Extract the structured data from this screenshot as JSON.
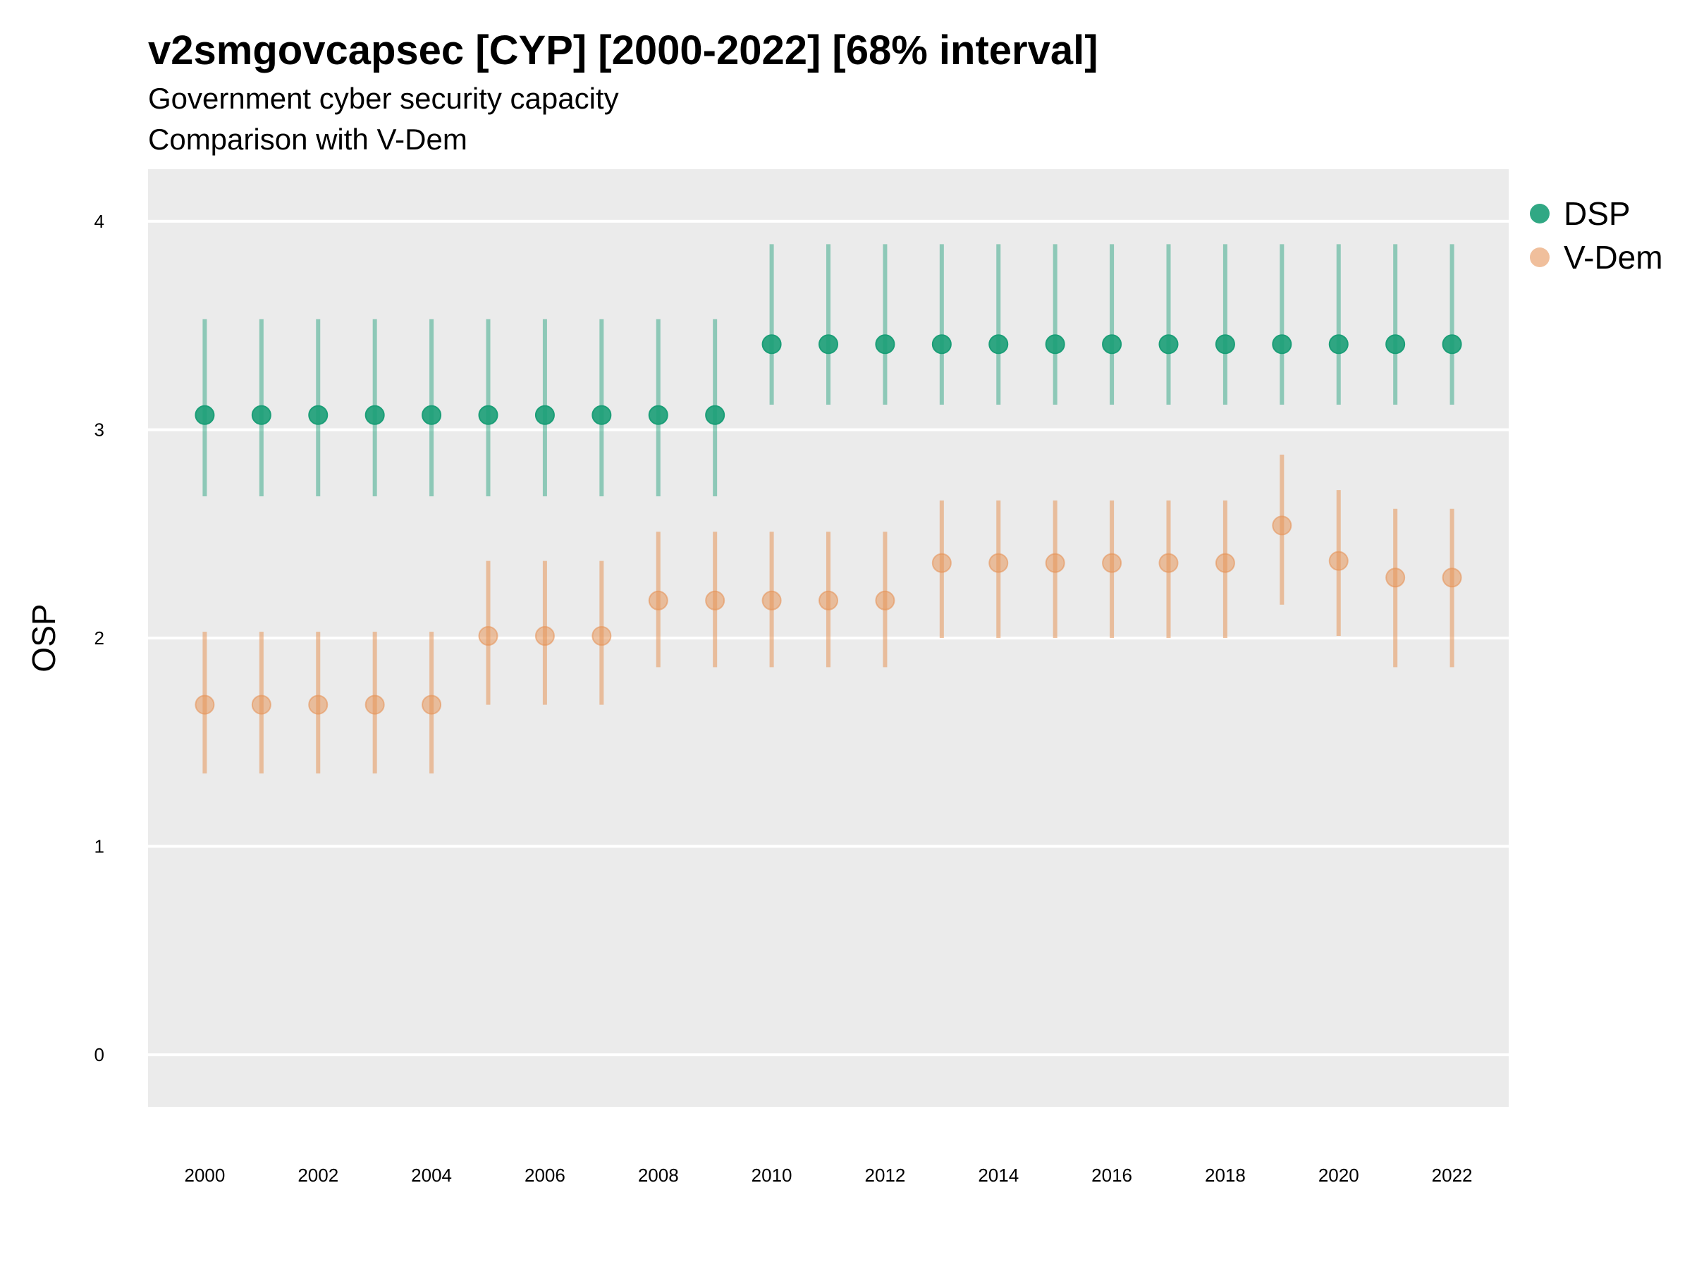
{
  "title": "v2smgovcapsec [CYP] [2000-2022] [68% interval]",
  "subtitle_lines": [
    "Government cyber security capacity",
    "Comparison with V-Dem"
  ],
  "colors": {
    "DSP": "#1b9e77",
    "V-Dem": "#e6955a",
    "panel": "#ebebeb",
    "grid": "#ffffff"
  },
  "chart_data": {
    "type": "scatter",
    "title": "v2smgovcapsec [CYP] [2000-2022] [68% interval]",
    "ylabel": "OSP",
    "xlabel": "",
    "ylim": [
      -0.25,
      4.25
    ],
    "xlim": [
      1999,
      2023
    ],
    "yticks": [
      0,
      1,
      2,
      3,
      4
    ],
    "xticks": [
      2000,
      2002,
      2004,
      2006,
      2008,
      2010,
      2012,
      2014,
      2016,
      2018,
      2020,
      2022
    ],
    "grid": true,
    "legend_position": "right",
    "x": [
      2000,
      2001,
      2002,
      2003,
      2004,
      2005,
      2006,
      2007,
      2008,
      2009,
      2010,
      2011,
      2012,
      2013,
      2014,
      2015,
      2016,
      2017,
      2018,
      2019,
      2020,
      2021,
      2022
    ],
    "series": [
      {
        "name": "DSP",
        "values": [
          3.07,
          3.07,
          3.07,
          3.07,
          3.07,
          3.07,
          3.07,
          3.07,
          3.07,
          3.07,
          3.41,
          3.41,
          3.41,
          3.41,
          3.41,
          3.41,
          3.41,
          3.41,
          3.41,
          3.41,
          3.41,
          3.41,
          3.41
        ],
        "lower": [
          2.68,
          2.68,
          2.68,
          2.68,
          2.68,
          2.68,
          2.68,
          2.68,
          2.68,
          2.68,
          3.12,
          3.12,
          3.12,
          3.12,
          3.12,
          3.12,
          3.12,
          3.12,
          3.12,
          3.12,
          3.12,
          3.12,
          3.12
        ],
        "upper": [
          3.53,
          3.53,
          3.53,
          3.53,
          3.53,
          3.53,
          3.53,
          3.53,
          3.53,
          3.53,
          3.89,
          3.89,
          3.89,
          3.89,
          3.89,
          3.89,
          3.89,
          3.89,
          3.89,
          3.89,
          3.89,
          3.89,
          3.89
        ]
      },
      {
        "name": "V-Dem",
        "values": [
          1.68,
          1.68,
          1.68,
          1.68,
          1.68,
          2.01,
          2.01,
          2.01,
          2.18,
          2.18,
          2.18,
          2.18,
          2.18,
          2.36,
          2.36,
          2.36,
          2.36,
          2.36,
          2.36,
          2.54,
          2.37,
          2.29,
          2.29
        ],
        "lower": [
          1.35,
          1.35,
          1.35,
          1.35,
          1.35,
          1.68,
          1.68,
          1.68,
          1.86,
          1.86,
          1.86,
          1.86,
          1.86,
          2.0,
          2.0,
          2.0,
          2.0,
          2.0,
          2.0,
          2.16,
          2.01,
          1.86,
          1.86
        ],
        "upper": [
          2.03,
          2.03,
          2.03,
          2.03,
          2.03,
          2.37,
          2.37,
          2.37,
          2.51,
          2.51,
          2.51,
          2.51,
          2.51,
          2.66,
          2.66,
          2.66,
          2.66,
          2.66,
          2.66,
          2.88,
          2.71,
          2.62,
          2.62
        ]
      }
    ]
  }
}
